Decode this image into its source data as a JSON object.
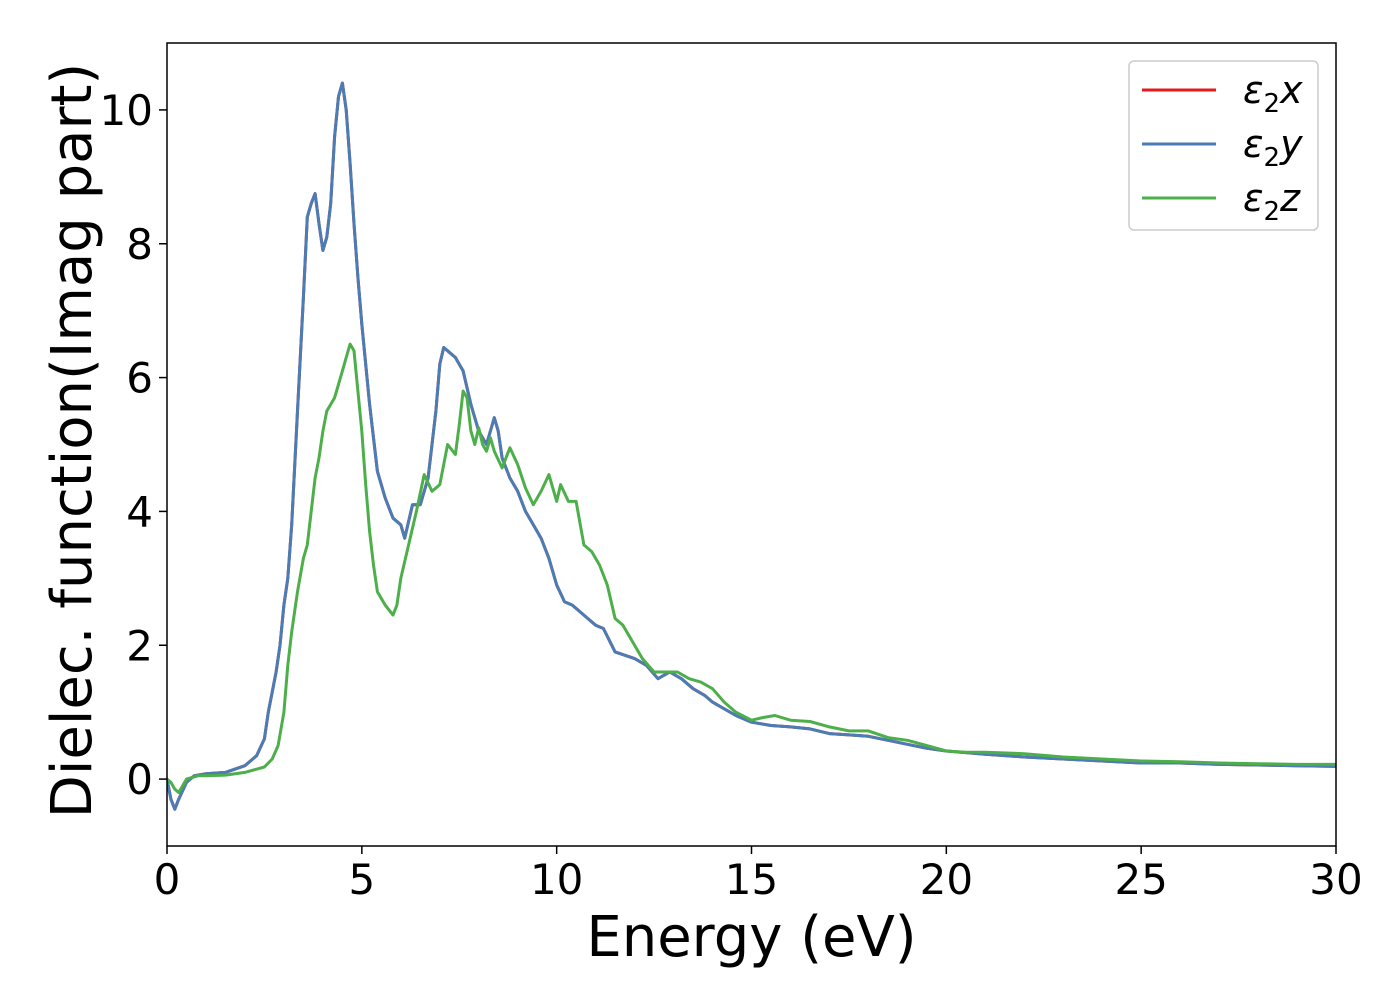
{
  "chart_data": {
    "type": "line",
    "title": "",
    "xlabel": "Energy (eV)",
    "ylabel": "Dielec. function(Imag part)",
    "xlim": [
      0,
      30
    ],
    "ylim": [
      -1,
      11
    ],
    "xticks": [
      0,
      5,
      10,
      15,
      20,
      25,
      30
    ],
    "yticks": [
      0,
      2,
      4,
      6,
      8,
      10
    ],
    "grid": false,
    "legend_position": "top-right",
    "series": [
      {
        "name": "ε2x",
        "legend": {
          "base": "ε",
          "sub": "2",
          "suffix": "x"
        },
        "color": "#e41a1c",
        "points": [
          [
            0,
            0
          ],
          [
            0.1,
            -0.3
          ],
          [
            0.2,
            -0.45
          ],
          [
            0.3,
            -0.3
          ],
          [
            0.5,
            -0.05
          ],
          [
            0.7,
            0.05
          ],
          [
            1.0,
            0.08
          ],
          [
            1.5,
            0.1
          ],
          [
            2.0,
            0.2
          ],
          [
            2.3,
            0.35
          ],
          [
            2.5,
            0.6
          ],
          [
            2.6,
            1.0
          ],
          [
            2.7,
            1.3
          ],
          [
            2.8,
            1.6
          ],
          [
            2.9,
            2.0
          ],
          [
            3.0,
            2.6
          ],
          [
            3.1,
            3.0
          ],
          [
            3.2,
            3.8
          ],
          [
            3.35,
            5.5
          ],
          [
            3.5,
            7.2
          ],
          [
            3.6,
            8.4
          ],
          [
            3.7,
            8.6
          ],
          [
            3.8,
            8.75
          ],
          [
            3.9,
            8.3
          ],
          [
            4.0,
            7.9
          ],
          [
            4.1,
            8.1
          ],
          [
            4.2,
            8.6
          ],
          [
            4.3,
            9.6
          ],
          [
            4.4,
            10.2
          ],
          [
            4.5,
            10.4
          ],
          [
            4.6,
            10.0
          ],
          [
            4.7,
            9.2
          ],
          [
            4.8,
            8.3
          ],
          [
            4.9,
            7.5
          ],
          [
            5.0,
            6.8
          ],
          [
            5.2,
            5.6
          ],
          [
            5.4,
            4.6
          ],
          [
            5.6,
            4.2
          ],
          [
            5.8,
            3.9
          ],
          [
            6.0,
            3.8
          ],
          [
            6.1,
            3.6
          ],
          [
            6.3,
            4.1
          ],
          [
            6.5,
            4.1
          ],
          [
            6.7,
            4.5
          ],
          [
            6.9,
            5.5
          ],
          [
            7.0,
            6.2
          ],
          [
            7.1,
            6.45
          ],
          [
            7.2,
            6.4
          ],
          [
            7.4,
            6.3
          ],
          [
            7.6,
            6.1
          ],
          [
            7.8,
            5.6
          ],
          [
            8.0,
            5.2
          ],
          [
            8.2,
            5.0
          ],
          [
            8.4,
            5.4
          ],
          [
            8.5,
            5.2
          ],
          [
            8.6,
            4.8
          ],
          [
            8.8,
            4.5
          ],
          [
            9.0,
            4.3
          ],
          [
            9.2,
            4.0
          ],
          [
            9.4,
            3.8
          ],
          [
            9.6,
            3.6
          ],
          [
            9.8,
            3.3
          ],
          [
            10.0,
            2.9
          ],
          [
            10.2,
            2.65
          ],
          [
            10.4,
            2.6
          ],
          [
            10.6,
            2.5
          ],
          [
            10.8,
            2.4
          ],
          [
            11.0,
            2.3
          ],
          [
            11.2,
            2.25
          ],
          [
            11.5,
            1.9
          ],
          [
            12.0,
            1.8
          ],
          [
            12.3,
            1.7
          ],
          [
            12.6,
            1.5
          ],
          [
            12.9,
            1.6
          ],
          [
            13.2,
            1.5
          ],
          [
            13.5,
            1.35
          ],
          [
            13.8,
            1.25
          ],
          [
            14.0,
            1.15
          ],
          [
            14.3,
            1.05
          ],
          [
            14.6,
            0.95
          ],
          [
            15.0,
            0.85
          ],
          [
            15.5,
            0.8
          ],
          [
            16.0,
            0.78
          ],
          [
            16.5,
            0.75
          ],
          [
            17.0,
            0.68
          ],
          [
            17.5,
            0.66
          ],
          [
            18.0,
            0.64
          ],
          [
            18.5,
            0.58
          ],
          [
            19.0,
            0.52
          ],
          [
            19.5,
            0.46
          ],
          [
            20.0,
            0.42
          ],
          [
            21.0,
            0.37
          ],
          [
            22.0,
            0.33
          ],
          [
            23.0,
            0.3
          ],
          [
            24.0,
            0.27
          ],
          [
            25.0,
            0.24
          ],
          [
            26.0,
            0.24
          ],
          [
            27.0,
            0.22
          ],
          [
            28.0,
            0.21
          ],
          [
            29.0,
            0.2
          ],
          [
            30.0,
            0.19
          ]
        ]
      },
      {
        "name": "ε2y",
        "legend": {
          "base": "ε",
          "sub": "2",
          "suffix": "y"
        },
        "color": "#4a7db5",
        "points": [
          [
            0,
            0
          ],
          [
            0.1,
            -0.3
          ],
          [
            0.2,
            -0.45
          ],
          [
            0.3,
            -0.3
          ],
          [
            0.5,
            -0.05
          ],
          [
            0.7,
            0.05
          ],
          [
            1.0,
            0.08
          ],
          [
            1.5,
            0.1
          ],
          [
            2.0,
            0.2
          ],
          [
            2.3,
            0.35
          ],
          [
            2.5,
            0.6
          ],
          [
            2.6,
            1.0
          ],
          [
            2.7,
            1.3
          ],
          [
            2.8,
            1.6
          ],
          [
            2.9,
            2.0
          ],
          [
            3.0,
            2.6
          ],
          [
            3.1,
            3.0
          ],
          [
            3.2,
            3.8
          ],
          [
            3.35,
            5.5
          ],
          [
            3.5,
            7.2
          ],
          [
            3.6,
            8.4
          ],
          [
            3.7,
            8.6
          ],
          [
            3.8,
            8.75
          ],
          [
            3.9,
            8.3
          ],
          [
            4.0,
            7.9
          ],
          [
            4.1,
            8.1
          ],
          [
            4.2,
            8.6
          ],
          [
            4.3,
            9.6
          ],
          [
            4.4,
            10.2
          ],
          [
            4.5,
            10.4
          ],
          [
            4.6,
            10.0
          ],
          [
            4.7,
            9.2
          ],
          [
            4.8,
            8.3
          ],
          [
            4.9,
            7.5
          ],
          [
            5.0,
            6.8
          ],
          [
            5.2,
            5.6
          ],
          [
            5.4,
            4.6
          ],
          [
            5.6,
            4.2
          ],
          [
            5.8,
            3.9
          ],
          [
            6.0,
            3.8
          ],
          [
            6.1,
            3.6
          ],
          [
            6.3,
            4.1
          ],
          [
            6.5,
            4.1
          ],
          [
            6.7,
            4.5
          ],
          [
            6.9,
            5.5
          ],
          [
            7.0,
            6.2
          ],
          [
            7.1,
            6.45
          ],
          [
            7.2,
            6.4
          ],
          [
            7.4,
            6.3
          ],
          [
            7.6,
            6.1
          ],
          [
            7.8,
            5.6
          ],
          [
            8.0,
            5.2
          ],
          [
            8.2,
            5.0
          ],
          [
            8.4,
            5.4
          ],
          [
            8.5,
            5.2
          ],
          [
            8.6,
            4.8
          ],
          [
            8.8,
            4.5
          ],
          [
            9.0,
            4.3
          ],
          [
            9.2,
            4.0
          ],
          [
            9.4,
            3.8
          ],
          [
            9.6,
            3.6
          ],
          [
            9.8,
            3.3
          ],
          [
            10.0,
            2.9
          ],
          [
            10.2,
            2.65
          ],
          [
            10.4,
            2.6
          ],
          [
            10.6,
            2.5
          ],
          [
            10.8,
            2.4
          ],
          [
            11.0,
            2.3
          ],
          [
            11.2,
            2.25
          ],
          [
            11.5,
            1.9
          ],
          [
            12.0,
            1.8
          ],
          [
            12.3,
            1.7
          ],
          [
            12.6,
            1.5
          ],
          [
            12.9,
            1.6
          ],
          [
            13.2,
            1.5
          ],
          [
            13.5,
            1.35
          ],
          [
            13.8,
            1.25
          ],
          [
            14.0,
            1.15
          ],
          [
            14.3,
            1.05
          ],
          [
            14.6,
            0.95
          ],
          [
            15.0,
            0.85
          ],
          [
            15.5,
            0.8
          ],
          [
            16.0,
            0.78
          ],
          [
            16.5,
            0.75
          ],
          [
            17.0,
            0.68
          ],
          [
            17.5,
            0.66
          ],
          [
            18.0,
            0.64
          ],
          [
            18.5,
            0.58
          ],
          [
            19.0,
            0.52
          ],
          [
            19.5,
            0.46
          ],
          [
            20.0,
            0.42
          ],
          [
            21.0,
            0.37
          ],
          [
            22.0,
            0.33
          ],
          [
            23.0,
            0.3
          ],
          [
            24.0,
            0.27
          ],
          [
            25.0,
            0.24
          ],
          [
            26.0,
            0.24
          ],
          [
            27.0,
            0.22
          ],
          [
            28.0,
            0.21
          ],
          [
            29.0,
            0.2
          ],
          [
            30.0,
            0.19
          ]
        ]
      },
      {
        "name": "ε2z",
        "legend": {
          "base": "ε",
          "sub": "2",
          "suffix": "z"
        },
        "color": "#4daf4a",
        "points": [
          [
            0,
            0
          ],
          [
            0.1,
            -0.05
          ],
          [
            0.2,
            -0.15
          ],
          [
            0.3,
            -0.2
          ],
          [
            0.5,
            0.0
          ],
          [
            0.8,
            0.05
          ],
          [
            1.0,
            0.05
          ],
          [
            1.5,
            0.06
          ],
          [
            2.0,
            0.1
          ],
          [
            2.5,
            0.18
          ],
          [
            2.7,
            0.3
          ],
          [
            2.85,
            0.5
          ],
          [
            3.0,
            1.0
          ],
          [
            3.1,
            1.7
          ],
          [
            3.2,
            2.2
          ],
          [
            3.35,
            2.8
          ],
          [
            3.5,
            3.3
          ],
          [
            3.6,
            3.5
          ],
          [
            3.7,
            4.0
          ],
          [
            3.8,
            4.5
          ],
          [
            3.9,
            4.8
          ],
          [
            4.0,
            5.2
          ],
          [
            4.1,
            5.5
          ],
          [
            4.2,
            5.6
          ],
          [
            4.3,
            5.7
          ],
          [
            4.4,
            5.9
          ],
          [
            4.5,
            6.1
          ],
          [
            4.6,
            6.3
          ],
          [
            4.7,
            6.5
          ],
          [
            4.8,
            6.4
          ],
          [
            4.9,
            5.8
          ],
          [
            5.0,
            5.2
          ],
          [
            5.1,
            4.4
          ],
          [
            5.2,
            3.7
          ],
          [
            5.3,
            3.2
          ],
          [
            5.4,
            2.8
          ],
          [
            5.6,
            2.6
          ],
          [
            5.8,
            2.45
          ],
          [
            5.9,
            2.6
          ],
          [
            6.0,
            3.0
          ],
          [
            6.2,
            3.5
          ],
          [
            6.4,
            4.0
          ],
          [
            6.6,
            4.55
          ],
          [
            6.8,
            4.3
          ],
          [
            7.0,
            4.4
          ],
          [
            7.2,
            5.0
          ],
          [
            7.4,
            4.85
          ],
          [
            7.5,
            5.3
          ],
          [
            7.6,
            5.8
          ],
          [
            7.7,
            5.7
          ],
          [
            7.8,
            5.2
          ],
          [
            7.9,
            5.0
          ],
          [
            8.0,
            5.25
          ],
          [
            8.1,
            5.0
          ],
          [
            8.2,
            4.9
          ],
          [
            8.3,
            5.1
          ],
          [
            8.4,
            4.9
          ],
          [
            8.6,
            4.65
          ],
          [
            8.8,
            4.95
          ],
          [
            9.0,
            4.7
          ],
          [
            9.2,
            4.35
          ],
          [
            9.4,
            4.1
          ],
          [
            9.6,
            4.3
          ],
          [
            9.8,
            4.55
          ],
          [
            10.0,
            4.15
          ],
          [
            10.1,
            4.4
          ],
          [
            10.3,
            4.15
          ],
          [
            10.5,
            4.15
          ],
          [
            10.7,
            3.5
          ],
          [
            10.9,
            3.4
          ],
          [
            11.1,
            3.2
          ],
          [
            11.3,
            2.9
          ],
          [
            11.5,
            2.4
          ],
          [
            11.7,
            2.3
          ],
          [
            12.0,
            2.0
          ],
          [
            12.2,
            1.8
          ],
          [
            12.5,
            1.6
          ],
          [
            12.8,
            1.6
          ],
          [
            13.1,
            1.6
          ],
          [
            13.4,
            1.5
          ],
          [
            13.7,
            1.45
          ],
          [
            14.0,
            1.35
          ],
          [
            14.3,
            1.15
          ],
          [
            14.6,
            1.0
          ],
          [
            15.0,
            0.88
          ],
          [
            15.3,
            0.92
          ],
          [
            15.6,
            0.95
          ],
          [
            16.0,
            0.88
          ],
          [
            16.5,
            0.86
          ],
          [
            17.0,
            0.78
          ],
          [
            17.5,
            0.72
          ],
          [
            18.0,
            0.72
          ],
          [
            18.5,
            0.62
          ],
          [
            19.0,
            0.58
          ],
          [
            19.5,
            0.5
          ],
          [
            20.0,
            0.42
          ],
          [
            20.5,
            0.4
          ],
          [
            21.0,
            0.4
          ],
          [
            22.0,
            0.38
          ],
          [
            23.0,
            0.33
          ],
          [
            24.0,
            0.3
          ],
          [
            25.0,
            0.27
          ],
          [
            26.0,
            0.26
          ],
          [
            27.0,
            0.24
          ],
          [
            28.0,
            0.23
          ],
          [
            29.0,
            0.22
          ],
          [
            30.0,
            0.22
          ]
        ]
      }
    ]
  }
}
